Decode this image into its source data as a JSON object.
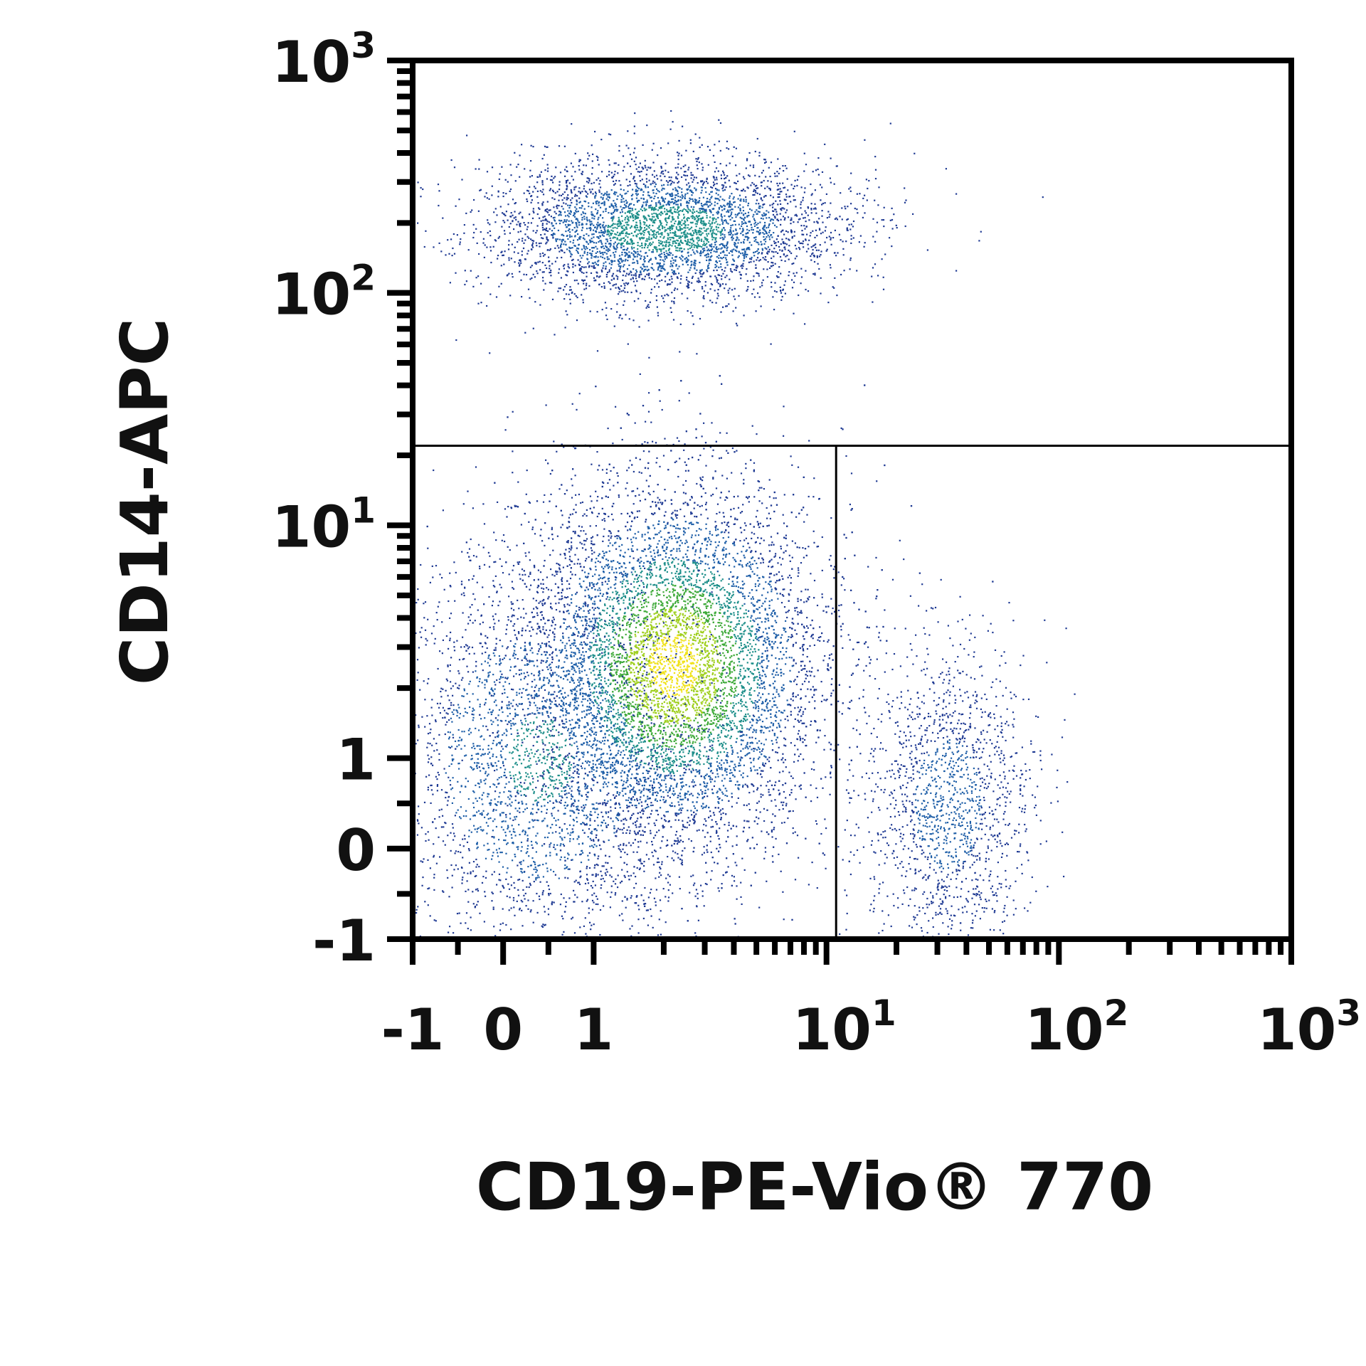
{
  "chart_data": {
    "type": "scatter",
    "title": "",
    "xlabel": "CD19-PE-Vio® 770",
    "ylabel": "CD14-APC",
    "x_scale": "biexponential",
    "y_scale": "biexponential",
    "xlim": [
      -1,
      1000
    ],
    "ylim": [
      -1,
      1000
    ],
    "x_ticks": [
      {
        "value": -1,
        "base": "-1",
        "exp": ""
      },
      {
        "value": 0,
        "base": "0",
        "exp": ""
      },
      {
        "value": 1,
        "base": "1",
        "exp": ""
      },
      {
        "value": 10,
        "base": "10",
        "exp": "1"
      },
      {
        "value": 100,
        "base": "10",
        "exp": "2"
      },
      {
        "value": 1000,
        "base": "10",
        "exp": "3"
      }
    ],
    "y_ticks": [
      {
        "value": -1,
        "base": "-1",
        "exp": ""
      },
      {
        "value": 0,
        "base": "0",
        "exp": ""
      },
      {
        "value": 1,
        "base": "1",
        "exp": ""
      },
      {
        "value": 10,
        "base": "10",
        "exp": "1"
      },
      {
        "value": 100,
        "base": "10",
        "exp": "2"
      },
      {
        "value": 1000,
        "base": "10",
        "exp": "3"
      }
    ],
    "gates": {
      "horizontal_y": 22,
      "vertical_x": 11
    },
    "populations": [
      {
        "center_x": 2.2,
        "center_y": 2.5,
        "spread_x_decades": 0.32,
        "spread_y_decades": 0.4,
        "relative_density": 1.0
      },
      {
        "center_x": 0.4,
        "center_y": 1.0,
        "spread_x_decades": 0.35,
        "spread_y_decades": 0.45,
        "relative_density": 0.35
      },
      {
        "center_x": 2.0,
        "center_y": 190,
        "spread_x_decades": 0.38,
        "spread_y_decades": 0.15,
        "relative_density": 0.45
      },
      {
        "center_x": 33,
        "center_y": 0.5,
        "spread_x_decades": 0.18,
        "spread_y_decades": 0.35,
        "relative_density": 0.18
      }
    ],
    "density_colors": [
      "#1f3a93",
      "#1f5fa8",
      "#1e8f8a",
      "#3faa3a",
      "#9fcf1e",
      "#f0e21a"
    ],
    "grid": false,
    "legend": "none"
  }
}
